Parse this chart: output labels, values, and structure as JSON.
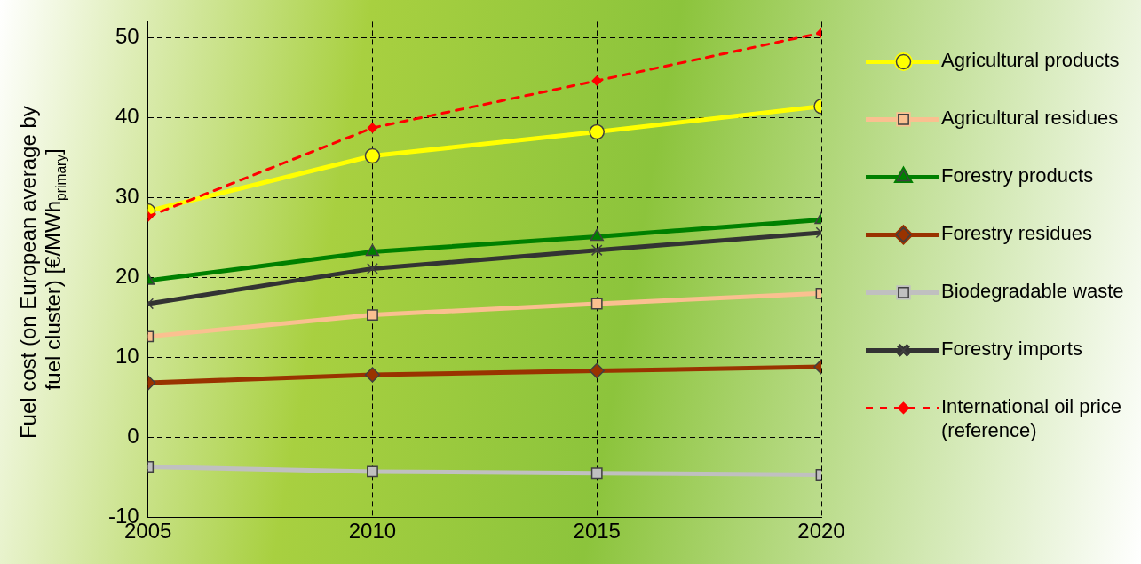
{
  "chart_data": {
    "type": "line",
    "ylabel": "Fuel cost (on European average by fuel cluster) [€/MWh$_{primary}$]",
    "x": [
      2005,
      2010,
      2015,
      2020
    ],
    "xlim": [
      2005,
      2020
    ],
    "xticks": [
      2005,
      2010,
      2015,
      2020
    ],
    "ylim": [
      -10,
      52
    ],
    "yticks": [
      -10,
      0,
      10,
      20,
      30,
      40,
      50
    ],
    "grid": true,
    "legend": "right",
    "series": [
      {
        "name": "Agricultural products",
        "color": "#ffff00",
        "marker": "circle",
        "values": [
          28.3,
          35.2,
          38.2,
          41.4
        ]
      },
      {
        "name": "Agricultural residues",
        "color": "#fac090",
        "marker": "square",
        "values": [
          12.6,
          15.3,
          16.7,
          18.0
        ]
      },
      {
        "name": "Forestry products",
        "color": "#008000",
        "marker": "triangle",
        "values": [
          19.6,
          23.2,
          25.1,
          27.2
        ]
      },
      {
        "name": "Forestry residues",
        "color": "#993300",
        "marker": "diamond",
        "values": [
          6.8,
          7.8,
          8.3,
          8.8
        ]
      },
      {
        "name": "Biodegradable waste",
        "color": "#c0c0c0",
        "marker": "square",
        "values": [
          -3.7,
          -4.3,
          -4.5,
          -4.7
        ]
      },
      {
        "name": "Forestry imports",
        "color": "#333333",
        "marker": "cross",
        "values": [
          16.7,
          21.1,
          23.4,
          25.6
        ]
      },
      {
        "name": "International oil price (reference)",
        "color": "#ff0000",
        "marker": "diamond",
        "line_style": "dashed",
        "values": [
          27.6,
          38.7,
          44.6,
          50.6
        ]
      }
    ]
  }
}
